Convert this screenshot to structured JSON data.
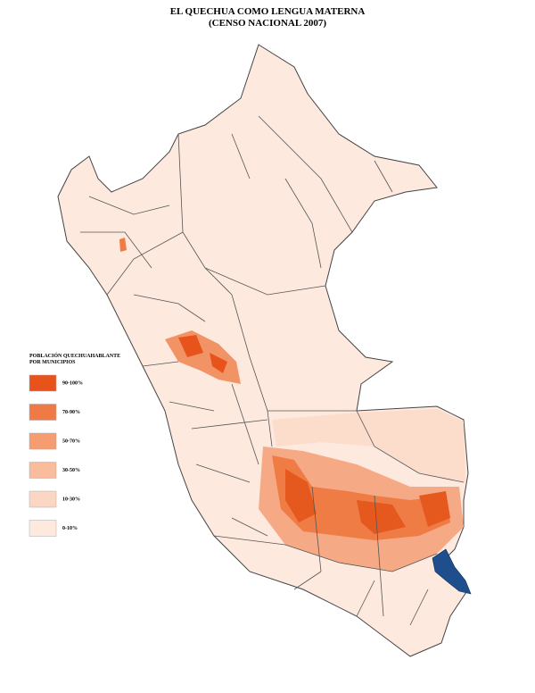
{
  "header": {
    "title": "EL QUECHUA COMO LENGUA MATERNA",
    "subtitle": "(CENSO NACIONAL 2007)"
  },
  "legend": {
    "title_lines": [
      "POBLACIÓN QUECHUAHABLANTE",
      "POR MUNICIPIOS"
    ],
    "items": [
      {
        "label": "90-100%",
        "color": "#e8531c"
      },
      {
        "label": "70-90%",
        "color": "#f07a45"
      },
      {
        "label": "50-70%",
        "color": "#f59c70"
      },
      {
        "label": "30-50%",
        "color": "#f9bc9c"
      },
      {
        "label": "10-30%",
        "color": "#fbd7c3"
      },
      {
        "label": "0-10%",
        "color": "#fde9de"
      }
    ]
  }
}
